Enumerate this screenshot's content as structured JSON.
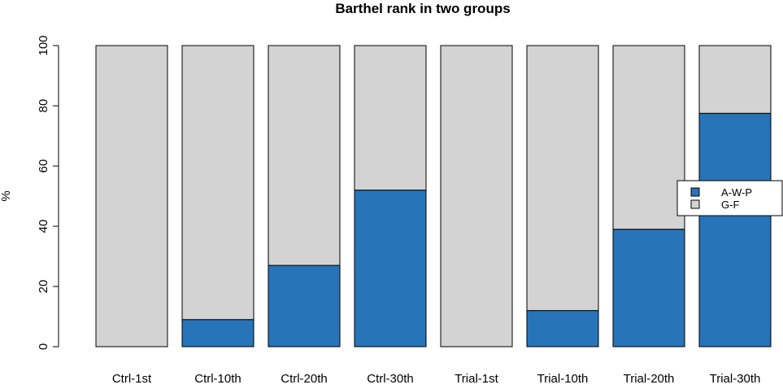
{
  "chart_data": {
    "type": "bar",
    "stacked": true,
    "title": "Barthel rank in two groups",
    "xlabel": "",
    "ylabel": "%",
    "ylim": [
      0,
      100
    ],
    "yticks": [
      0,
      20,
      40,
      60,
      80,
      100
    ],
    "categories": [
      "Ctrl-1st",
      "Ctrl-10th",
      "Ctrl-20th",
      "Ctrl-30th",
      "Trial-1st",
      "Trial-10th",
      "Trial-20th",
      "Trial-30th"
    ],
    "series": [
      {
        "name": "A-W-P",
        "color": "#2874b8",
        "values": [
          0,
          9,
          27,
          52,
          0,
          12,
          39,
          77.5
        ]
      },
      {
        "name": "G-F",
        "color": "#d3d3d3",
        "values": [
          100,
          91,
          73,
          48,
          100,
          88,
          61,
          22.5
        ]
      }
    ],
    "legend_position": "right",
    "grid": false
  }
}
